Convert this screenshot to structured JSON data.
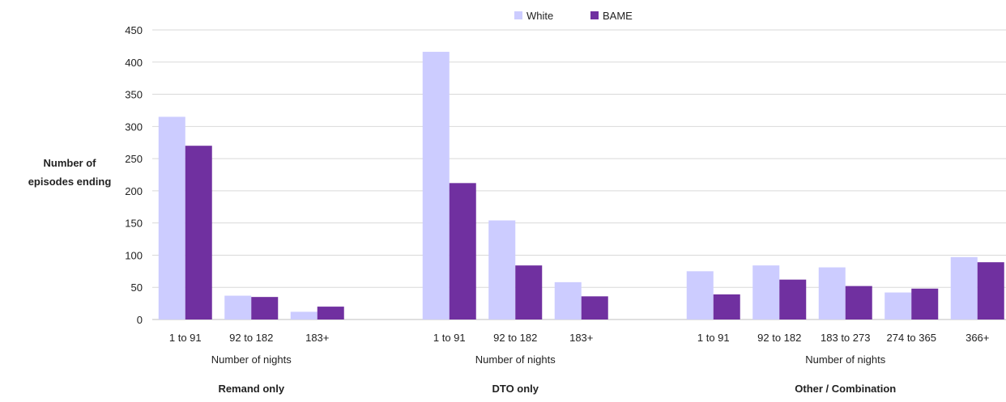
{
  "chart_data": {
    "type": "bar",
    "ylabel": [
      "Number of",
      "episodes ending"
    ],
    "ylim": [
      0,
      450
    ],
    "yticks": [
      0,
      50,
      100,
      150,
      200,
      250,
      300,
      350,
      400,
      450
    ],
    "grid": true,
    "legend_position": "top-center",
    "series": [
      {
        "name": "White",
        "color": "#ccccff"
      },
      {
        "name": "BAME",
        "color": "#7030a0"
      }
    ],
    "groups": [
      {
        "name": "Remand only",
        "xlabel": "Number of nights",
        "categories": [
          "1 to 91",
          "92 to 182",
          "183+"
        ],
        "values": {
          "White": [
            315,
            37,
            12
          ],
          "BAME": [
            270,
            35,
            20
          ]
        }
      },
      {
        "name": "DTO only",
        "xlabel": "Number of nights",
        "categories": [
          "1 to 91",
          "92 to 182",
          "183+"
        ],
        "values": {
          "White": [
            416,
            154,
            58
          ],
          "BAME": [
            212,
            84,
            36
          ]
        }
      },
      {
        "name": "Other / Combination",
        "xlabel": "Number of nights",
        "categories": [
          "1 to 91",
          "92 to 182",
          "183 to 273",
          "274 to 365",
          "366+"
        ],
        "values": {
          "White": [
            75,
            84,
            81,
            42,
            97
          ],
          "BAME": [
            39,
            62,
            52,
            48,
            89
          ]
        }
      }
    ]
  }
}
